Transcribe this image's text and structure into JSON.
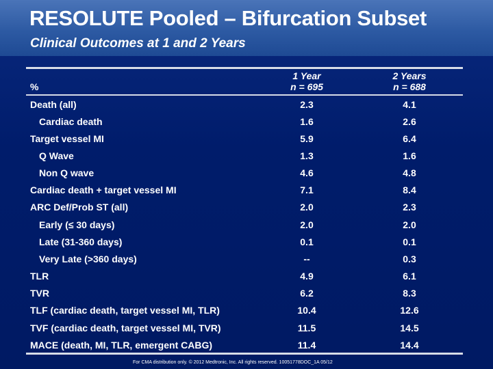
{
  "header": {
    "title": "RESOLUTE Pooled – Bifurcation Subset",
    "subtitle": "Clinical Outcomes at 1 and 2 Years"
  },
  "table": {
    "unit_label": "%",
    "columns": [
      {
        "title": "1 Year",
        "n": "n = 695"
      },
      {
        "title": "2 Years",
        "n": "n = 688"
      }
    ],
    "rows": [
      {
        "label": "Death (all)",
        "v1": "2.3",
        "v2": "4.1"
      },
      {
        "label": "Cardiac death",
        "v1": "1.6",
        "v2": "2.6"
      },
      {
        "label": "Target vessel MI",
        "v1": "5.9",
        "v2": "6.4"
      },
      {
        "label": "Q Wave",
        "v1": "1.3",
        "v2": "1.6"
      },
      {
        "label": "Non Q wave",
        "v1": "4.6",
        "v2": "4.8"
      },
      {
        "label": "Cardiac death + target vessel MI",
        "v1": "7.1",
        "v2": "8.4"
      },
      {
        "label": "ARC Def/Prob ST (all)",
        "v1": "2.0",
        "v2": "2.3"
      },
      {
        "label": "Early (≤ 30 days)",
        "v1": "2.0",
        "v2": "2.0"
      },
      {
        "label": "Late (31-360 days)",
        "v1": "0.1",
        "v2": "0.1"
      },
      {
        "label": "Very Late (>360 days)",
        "v1": "--",
        "v2": "0.3"
      },
      {
        "label": "TLR",
        "v1": "4.9",
        "v2": "6.1"
      },
      {
        "label": "TVR",
        "v1": "6.2",
        "v2": "8.3"
      },
      {
        "label": "TLF (cardiac death, target vessel MI, TLR)",
        "v1": "10.4",
        "v2": "12.6"
      },
      {
        "label": "TVF (cardiac death, target vessel MI, TVR)",
        "v1": "11.5",
        "v2": "14.5"
      },
      {
        "label": "MACE (death, MI, TLR, emergent CABG)",
        "v1": "11.4",
        "v2": "14.4"
      }
    ]
  },
  "footer": {
    "text": "For CMA distribution only. © 2012 Medtronic, Inc. All rights reserved. 10051778DOC_1A 05/12"
  }
}
